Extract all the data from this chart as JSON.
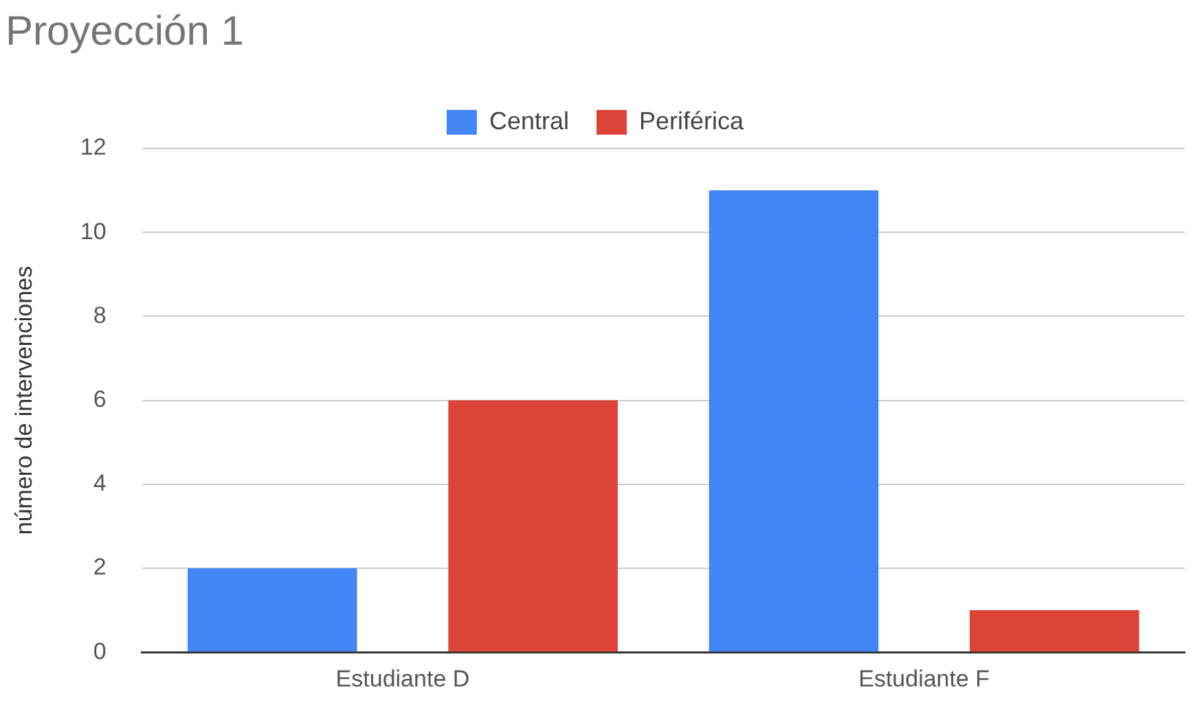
{
  "chart_data": {
    "type": "bar",
    "title": "Proyección 1",
    "ylabel": "número de intervenciones",
    "categories": [
      "Estudiante D",
      "Estudiante F"
    ],
    "series": [
      {
        "name": "Central",
        "color": "#4285f4",
        "values": [
          2,
          11
        ]
      },
      {
        "name": "Periférica",
        "color": "#db4437",
        "values": [
          6,
          1
        ]
      }
    ],
    "ylim": [
      0,
      12
    ],
    "yticks": [
      0,
      2,
      4,
      6,
      8,
      10,
      12
    ],
    "grid": "y",
    "legend": "top"
  }
}
